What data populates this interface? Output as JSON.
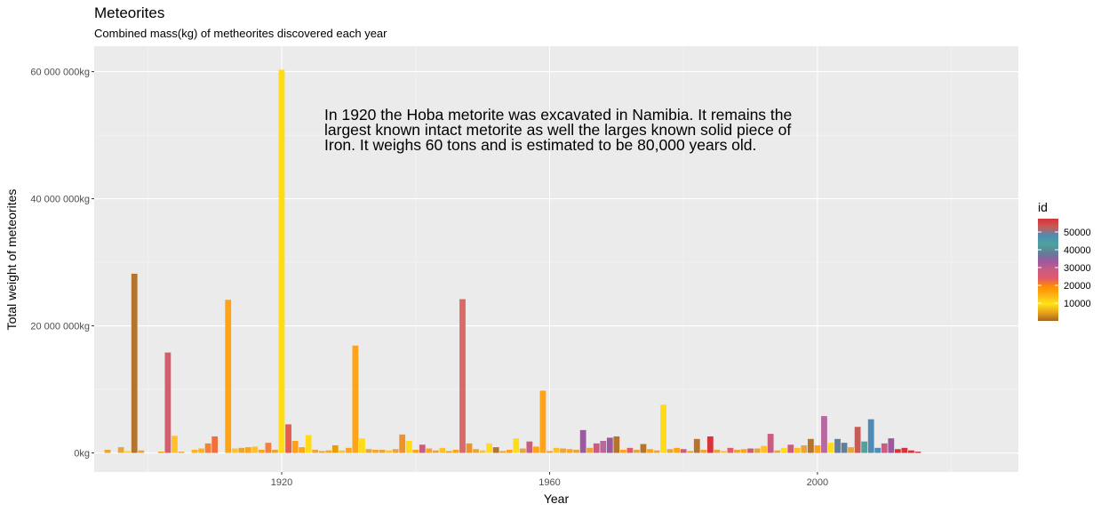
{
  "chart_data": {
    "type": "bar",
    "title": "Meteorites",
    "subtitle": "Combined mass(kg) of metheorites discovered each year",
    "xlabel": "Year",
    "ylabel": "Total weight of meteorites",
    "x_ticks": [
      1920,
      1960,
      2000
    ],
    "x_range": [
      1892,
      2030
    ],
    "y_ticks": [
      {
        "value": 0,
        "label": "0kg"
      },
      {
        "value": 20000000,
        "label": "20 000 000kg"
      },
      {
        "value": 40000000,
        "label": "40 000 000kg"
      },
      {
        "value": 60000000,
        "label": "60 000 000kg"
      }
    ],
    "y_range": [
      -3000000,
      64000000
    ],
    "grid": true,
    "legend": {
      "title": "id",
      "position": "right",
      "ticks": [
        10000,
        20000,
        30000,
        40000,
        50000
      ],
      "range": [
        0,
        57500
      ],
      "colors": [
        "#a5671f",
        "#e9a31a",
        "#ffe319",
        "#fdb215",
        "#ff8f00",
        "#e2596c",
        "#c95c81",
        "#9c59a0",
        "#617f98",
        "#4ca39d",
        "#4f8cb3",
        "#c75b56",
        "#d6343a"
      ]
    },
    "annotation": [
      "In 1920 the Hoba metorite was excavated in Namibia. It remains the",
      "largest known intact metorite as well the larges known solid piece of",
      "Iron. It weighs 60 tons and is estimated to be 80,000 years old."
    ],
    "bars": [
      {
        "x": 1894,
        "value": 500000,
        "color": "#e8a63a"
      },
      {
        "x": 1896,
        "value": 900000,
        "color": "#e8a63a"
      },
      {
        "x": 1897,
        "value": 300000,
        "color": "#ffcf2f"
      },
      {
        "x": 1898,
        "value": 28200000,
        "color": "#b5742c"
      },
      {
        "x": 1899,
        "value": 400000,
        "color": "#e8a63a"
      },
      {
        "x": 1902,
        "value": 200000,
        "color": "#e5a000"
      },
      {
        "x": 1903,
        "value": 15800000,
        "color": "#d25f6b"
      },
      {
        "x": 1904,
        "value": 2700000,
        "color": "#ffc02a"
      },
      {
        "x": 1905,
        "value": 200000,
        "color": "#e8a63a"
      },
      {
        "x": 1907,
        "value": 500000,
        "color": "#ffb21c"
      },
      {
        "x": 1908,
        "value": 700000,
        "color": "#ffb21c"
      },
      {
        "x": 1909,
        "value": 1500000,
        "color": "#f3803b"
      },
      {
        "x": 1910,
        "value": 2600000,
        "color": "#f26f3a"
      },
      {
        "x": 1912,
        "value": 24100000,
        "color": "#ffa318"
      },
      {
        "x": 1913,
        "value": 700000,
        "color": "#ffc02a"
      },
      {
        "x": 1914,
        "value": 800000,
        "color": "#e8a63a"
      },
      {
        "x": 1915,
        "value": 900000,
        "color": "#ffa318"
      },
      {
        "x": 1916,
        "value": 1000000,
        "color": "#ffc02a"
      },
      {
        "x": 1917,
        "value": 500000,
        "color": "#ffa318"
      },
      {
        "x": 1918,
        "value": 1600000,
        "color": "#f3803b"
      },
      {
        "x": 1919,
        "value": 500000,
        "color": "#e8a63a"
      },
      {
        "x": 1920,
        "value": 60300000,
        "color": "#ffdc17"
      },
      {
        "x": 1921,
        "value": 4500000,
        "color": "#e65c50"
      },
      {
        "x": 1922,
        "value": 1900000,
        "color": "#ff9f1a"
      },
      {
        "x": 1923,
        "value": 900000,
        "color": "#ffa318"
      },
      {
        "x": 1924,
        "value": 2800000,
        "color": "#ffdc17"
      },
      {
        "x": 1925,
        "value": 500000,
        "color": "#e8a63a"
      },
      {
        "x": 1926,
        "value": 300000,
        "color": "#e8a63a"
      },
      {
        "x": 1927,
        "value": 400000,
        "color": "#ffa318"
      },
      {
        "x": 1928,
        "value": 1200000,
        "color": "#e5a000"
      },
      {
        "x": 1929,
        "value": 400000,
        "color": "#ffc02a"
      },
      {
        "x": 1930,
        "value": 800000,
        "color": "#ffa318"
      },
      {
        "x": 1931,
        "value": 16900000,
        "color": "#ffa318"
      },
      {
        "x": 1932,
        "value": 2300000,
        "color": "#ffdc17"
      },
      {
        "x": 1933,
        "value": 600000,
        "color": "#e8a63a"
      },
      {
        "x": 1934,
        "value": 500000,
        "color": "#ffa318"
      },
      {
        "x": 1935,
        "value": 500000,
        "color": "#e8a63a"
      },
      {
        "x": 1936,
        "value": 400000,
        "color": "#ffc02a"
      },
      {
        "x": 1937,
        "value": 600000,
        "color": "#e8a63a"
      },
      {
        "x": 1938,
        "value": 2900000,
        "color": "#f0922a"
      },
      {
        "x": 1939,
        "value": 1900000,
        "color": "#ffdc17"
      },
      {
        "x": 1940,
        "value": 500000,
        "color": "#ffa318"
      },
      {
        "x": 1941,
        "value": 1300000,
        "color": "#c95c81"
      },
      {
        "x": 1942,
        "value": 700000,
        "color": "#ffa318"
      },
      {
        "x": 1943,
        "value": 400000,
        "color": "#e8a63a"
      },
      {
        "x": 1944,
        "value": 800000,
        "color": "#ffc02a"
      },
      {
        "x": 1945,
        "value": 300000,
        "color": "#e8a63a"
      },
      {
        "x": 1946,
        "value": 500000,
        "color": "#ffa318"
      },
      {
        "x": 1947,
        "value": 24200000,
        "color": "#d96a68"
      },
      {
        "x": 1948,
        "value": 1500000,
        "color": "#f0922a"
      },
      {
        "x": 1949,
        "value": 600000,
        "color": "#e8a63a"
      },
      {
        "x": 1950,
        "value": 400000,
        "color": "#ffc02a"
      },
      {
        "x": 1951,
        "value": 1500000,
        "color": "#ffdc17"
      },
      {
        "x": 1952,
        "value": 900000,
        "color": "#b5742c"
      },
      {
        "x": 1953,
        "value": 300000,
        "color": "#e8a63a"
      },
      {
        "x": 1954,
        "value": 500000,
        "color": "#ffa318"
      },
      {
        "x": 1955,
        "value": 2300000,
        "color": "#ffdc17"
      },
      {
        "x": 1956,
        "value": 700000,
        "color": "#e8a63a"
      },
      {
        "x": 1957,
        "value": 1800000,
        "color": "#c95c81"
      },
      {
        "x": 1958,
        "value": 1000000,
        "color": "#ffa318"
      },
      {
        "x": 1959,
        "value": 9800000,
        "color": "#ffa318"
      },
      {
        "x": 1960,
        "value": 300000,
        "color": "#e8a63a"
      },
      {
        "x": 1961,
        "value": 800000,
        "color": "#ffc02a"
      },
      {
        "x": 1962,
        "value": 700000,
        "color": "#e8a63a"
      },
      {
        "x": 1963,
        "value": 600000,
        "color": "#ffa318"
      },
      {
        "x": 1964,
        "value": 500000,
        "color": "#e8a63a"
      },
      {
        "x": 1965,
        "value": 3600000,
        "color": "#9c59a0"
      },
      {
        "x": 1966,
        "value": 800000,
        "color": "#e8a63a"
      },
      {
        "x": 1967,
        "value": 1500000,
        "color": "#c95c81"
      },
      {
        "x": 1968,
        "value": 1900000,
        "color": "#b868a0"
      },
      {
        "x": 1969,
        "value": 2400000,
        "color": "#9c59a0"
      },
      {
        "x": 1970,
        "value": 2600000,
        "color": "#b5742c"
      },
      {
        "x": 1971,
        "value": 500000,
        "color": "#ffa318"
      },
      {
        "x": 1972,
        "value": 800000,
        "color": "#e25b6a"
      },
      {
        "x": 1973,
        "value": 500000,
        "color": "#e8a63a"
      },
      {
        "x": 1974,
        "value": 1400000,
        "color": "#b5742c"
      },
      {
        "x": 1975,
        "value": 600000,
        "color": "#ffa318"
      },
      {
        "x": 1976,
        "value": 400000,
        "color": "#e8a63a"
      },
      {
        "x": 1977,
        "value": 7600000,
        "color": "#ffdc17"
      },
      {
        "x": 1978,
        "value": 600000,
        "color": "#e8a63a"
      },
      {
        "x": 1979,
        "value": 800000,
        "color": "#ffa318"
      },
      {
        "x": 1980,
        "value": 600000,
        "color": "#c95c81"
      },
      {
        "x": 1981,
        "value": 300000,
        "color": "#e8a63a"
      },
      {
        "x": 1982,
        "value": 2200000,
        "color": "#b5742c"
      },
      {
        "x": 1983,
        "value": 500000,
        "color": "#e8a63a"
      },
      {
        "x": 1984,
        "value": 2600000,
        "color": "#d6343a"
      },
      {
        "x": 1985,
        "value": 500000,
        "color": "#e8a63a"
      },
      {
        "x": 1986,
        "value": 300000,
        "color": "#ffc02a"
      },
      {
        "x": 1987,
        "value": 800000,
        "color": "#e25b6a"
      },
      {
        "x": 1988,
        "value": 500000,
        "color": "#e8a63a"
      },
      {
        "x": 1989,
        "value": 600000,
        "color": "#ffa318"
      },
      {
        "x": 1990,
        "value": 700000,
        "color": "#c95c81"
      },
      {
        "x": 1991,
        "value": 700000,
        "color": "#e8a63a"
      },
      {
        "x": 1992,
        "value": 1100000,
        "color": "#ffc02a"
      },
      {
        "x": 1993,
        "value": 3000000,
        "color": "#c95c81"
      },
      {
        "x": 1994,
        "value": 400000,
        "color": "#e8a63a"
      },
      {
        "x": 1995,
        "value": 800000,
        "color": "#ffdc17"
      },
      {
        "x": 1996,
        "value": 1300000,
        "color": "#c95c81"
      },
      {
        "x": 1997,
        "value": 800000,
        "color": "#ffc02a"
      },
      {
        "x": 1998,
        "value": 1200000,
        "color": "#e8a63a"
      },
      {
        "x": 1999,
        "value": 2200000,
        "color": "#b5742c"
      },
      {
        "x": 2000,
        "value": 1200000,
        "color": "#ffa318"
      },
      {
        "x": 2001,
        "value": 5800000,
        "color": "#b868a0"
      },
      {
        "x": 2002,
        "value": 1600000,
        "color": "#ffdc17"
      },
      {
        "x": 2003,
        "value": 2200000,
        "color": "#617f98"
      },
      {
        "x": 2004,
        "value": 1600000,
        "color": "#617f98"
      },
      {
        "x": 2005,
        "value": 900000,
        "color": "#e8a63a"
      },
      {
        "x": 2006,
        "value": 4100000,
        "color": "#c75b56"
      },
      {
        "x": 2007,
        "value": 1800000,
        "color": "#4ca39d"
      },
      {
        "x": 2008,
        "value": 5300000,
        "color": "#4f8cb3"
      },
      {
        "x": 2009,
        "value": 800000,
        "color": "#4f8cb3"
      },
      {
        "x": 2010,
        "value": 1500000,
        "color": "#c95c81"
      },
      {
        "x": 2011,
        "value": 2300000,
        "color": "#9c59a0"
      },
      {
        "x": 2012,
        "value": 600000,
        "color": "#d6343a"
      },
      {
        "x": 2013,
        "value": 800000,
        "color": "#d6343a"
      },
      {
        "x": 2014,
        "value": 400000,
        "color": "#d6343a"
      },
      {
        "x": 2015,
        "value": 200000,
        "color": "#d6343a"
      }
    ]
  }
}
